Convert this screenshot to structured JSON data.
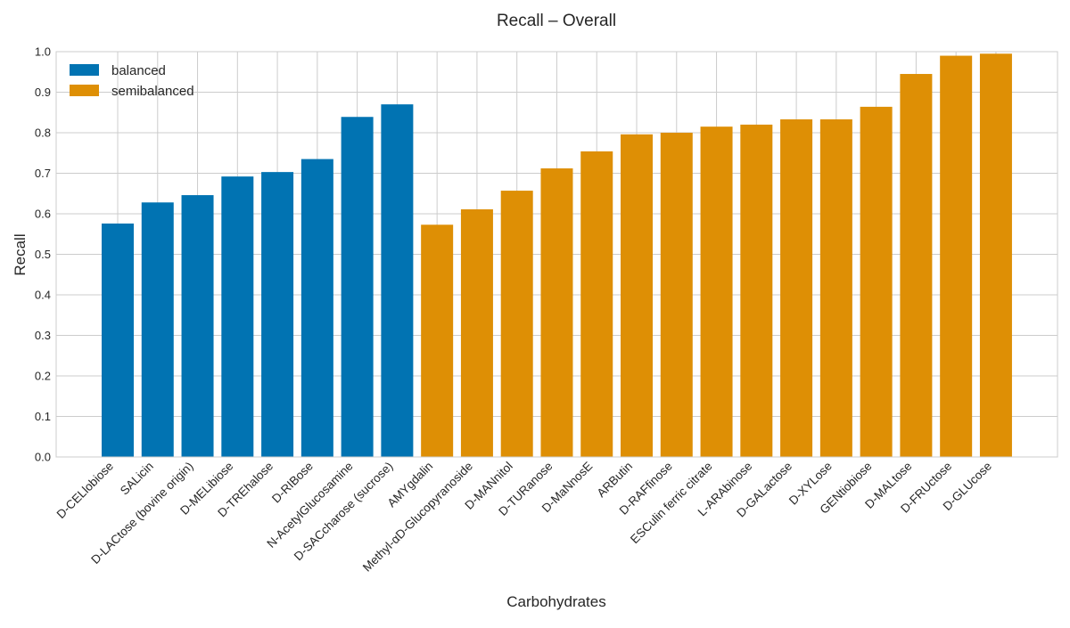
{
  "chart_data": {
    "type": "bar",
    "title": "Recall – Overall",
    "xlabel": "Carbohydrates",
    "ylabel": "Recall",
    "ylim": [
      0,
      1.0
    ],
    "yticks": [
      "0.0",
      "0.1",
      "0.2",
      "0.3",
      "0.4",
      "0.5",
      "0.6",
      "0.7",
      "0.8",
      "0.9",
      "1.0"
    ],
    "grid": true,
    "legend_position": "top-left",
    "categories": [
      "D-CELlobiose",
      "SALicin",
      "D-LACtose (bovine origin)",
      "D-MELibiose",
      "D-TREhalose",
      "D-RIBose",
      "N-AcetylGlucosamine",
      "D-SACcharose (sucrose)",
      "AMYgdalin",
      "Methyl-αD-Glucopyranoside",
      "D-MANnitol",
      "D-TURanose",
      "D-MaNnosE",
      "ARButin",
      "D-RAFfinose",
      "ESCulin ferric citrate",
      "L-ARAbinose",
      "D-GALactose",
      "D-XYLose",
      "GENtiobiose",
      "D-MALtose",
      "D-FRUctose",
      "D-GLUcose"
    ],
    "values": [
      0.576,
      0.628,
      0.646,
      0.692,
      0.703,
      0.735,
      0.839,
      0.87,
      0.573,
      0.611,
      0.657,
      0.712,
      0.754,
      0.796,
      0.8,
      0.815,
      0.82,
      0.833,
      0.833,
      0.864,
      0.945,
      0.99,
      0.995
    ],
    "groups": [
      "balanced",
      "balanced",
      "balanced",
      "balanced",
      "balanced",
      "balanced",
      "balanced",
      "balanced",
      "semibalanced",
      "semibalanced",
      "semibalanced",
      "semibalanced",
      "semibalanced",
      "semibalanced",
      "semibalanced",
      "semibalanced",
      "semibalanced",
      "semibalanced",
      "semibalanced",
      "semibalanced",
      "semibalanced",
      "semibalanced",
      "semibalanced"
    ],
    "series": [
      {
        "name": "balanced",
        "color": "#0173b2"
      },
      {
        "name": "semibalanced",
        "color": "#de8f05"
      }
    ]
  }
}
